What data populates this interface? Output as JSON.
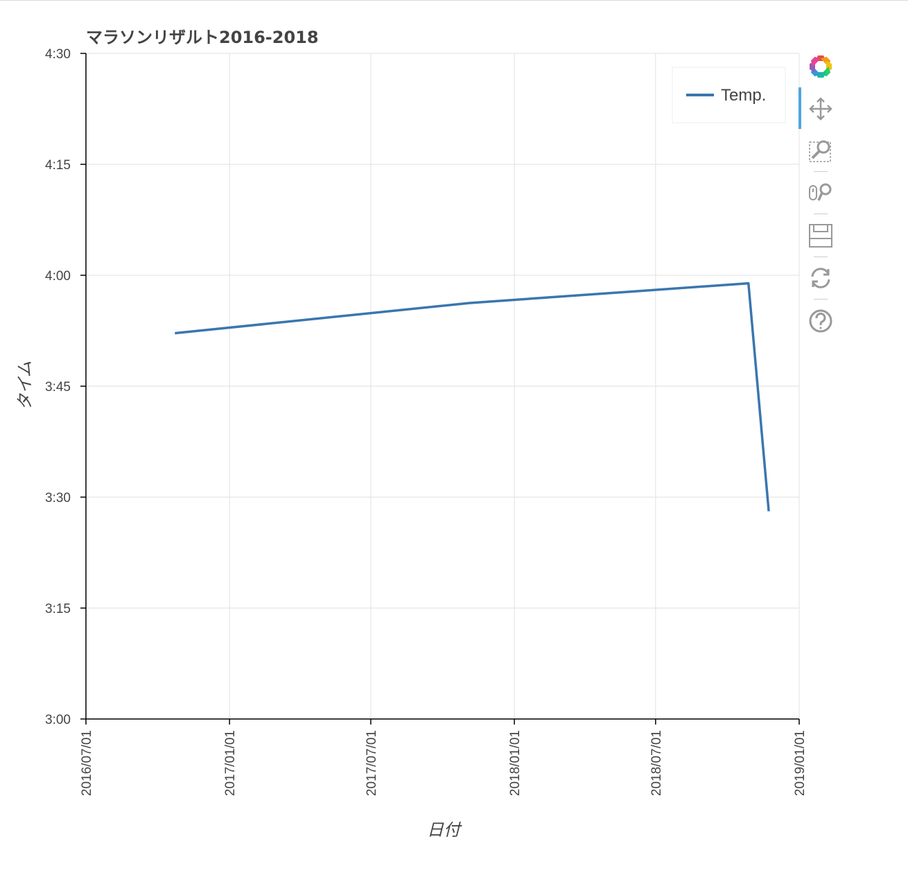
{
  "chart_data": {
    "type": "line",
    "title": "マラソンリザルト2016-2018",
    "xlabel": "日付",
    "ylabel": "タイム",
    "x_ticks": [
      "2016/07/01",
      "2017/01/01",
      "2017/07/01",
      "2018/01/01",
      "2018/07/01",
      "2019/01/01"
    ],
    "y_ticks": [
      "3:00",
      "3:15",
      "3:30",
      "3:45",
      "4:00",
      "4:15",
      "4:30"
    ],
    "xlim": [
      "2016/07/01",
      "2019/01/01"
    ],
    "ylim": [
      "3:00",
      "4:30"
    ],
    "grid": true,
    "legend_position": "top-right",
    "series": [
      {
        "name": "Temp.",
        "color": "#3a76af",
        "points": [
          {
            "date": "2016-10-23",
            "time": "3:52:10"
          },
          {
            "date": "2017-11-05",
            "time": "3:56:15"
          },
          {
            "date": "2018-10-28",
            "time": "3:58:55"
          },
          {
            "date": "2018-11-23",
            "time": "3:28:05"
          }
        ]
      }
    ]
  },
  "toolbar": {
    "tools": [
      "bokeh-logo-icon",
      "pan-icon",
      "box-zoom-icon",
      "wheel-zoom-icon",
      "save-icon",
      "reset-icon",
      "help-icon"
    ]
  }
}
